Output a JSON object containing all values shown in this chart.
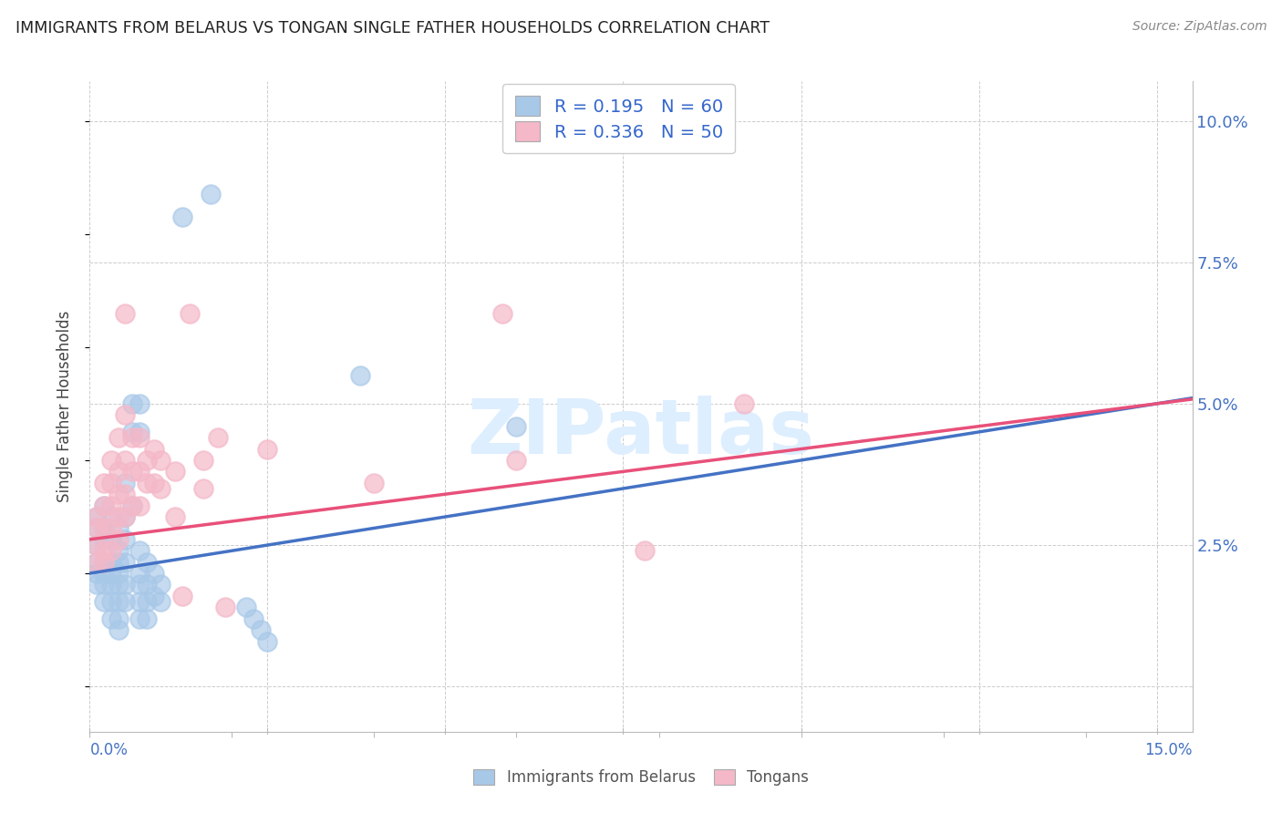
{
  "title": "IMMIGRANTS FROM BELARUS VS TONGAN SINGLE FATHER HOUSEHOLDS CORRELATION CHART",
  "source": "Source: ZipAtlas.com",
  "ylabel": "Single Father Households",
  "right_yticks": [
    0.0,
    0.025,
    0.05,
    0.075,
    0.1
  ],
  "right_yticklabels": [
    "",
    "2.5%",
    "5.0%",
    "7.5%",
    "10.0%"
  ],
  "belarus_color": "#a8c8e8",
  "tongan_color": "#f4b8c8",
  "belarus_line_color": "#4472c4",
  "tongan_line_color": "#e8507a",
  "background_color": "#ffffff",
  "grid_color": "#cccccc",
  "xlim": [
    0.0,
    0.155
  ],
  "ylim": [
    -0.008,
    0.107
  ],
  "watermark_color": "#ddeeff",
  "legend_blue_face": "#a8c8e8",
  "legend_pink_face": "#f4b8c8",
  "legend_text_color": "#3366cc",
  "legend_n_color": "#cc3366",
  "belarus_scatter": [
    [
      0.001,
      0.03
    ],
    [
      0.001,
      0.028
    ],
    [
      0.001,
      0.025
    ],
    [
      0.001,
      0.022
    ],
    [
      0.001,
      0.02
    ],
    [
      0.001,
      0.018
    ],
    [
      0.002,
      0.032
    ],
    [
      0.002,
      0.028
    ],
    [
      0.002,
      0.026
    ],
    [
      0.002,
      0.022
    ],
    [
      0.002,
      0.02
    ],
    [
      0.002,
      0.018
    ],
    [
      0.002,
      0.015
    ],
    [
      0.003,
      0.03
    ],
    [
      0.003,
      0.026
    ],
    [
      0.003,
      0.022
    ],
    [
      0.003,
      0.02
    ],
    [
      0.003,
      0.018
    ],
    [
      0.003,
      0.015
    ],
    [
      0.003,
      0.012
    ],
    [
      0.004,
      0.028
    ],
    [
      0.004,
      0.024
    ],
    [
      0.004,
      0.022
    ],
    [
      0.004,
      0.02
    ],
    [
      0.004,
      0.018
    ],
    [
      0.004,
      0.015
    ],
    [
      0.004,
      0.012
    ],
    [
      0.004,
      0.01
    ],
    [
      0.005,
      0.036
    ],
    [
      0.005,
      0.03
    ],
    [
      0.005,
      0.026
    ],
    [
      0.005,
      0.022
    ],
    [
      0.005,
      0.018
    ],
    [
      0.005,
      0.015
    ],
    [
      0.006,
      0.05
    ],
    [
      0.006,
      0.045
    ],
    [
      0.006,
      0.032
    ],
    [
      0.007,
      0.05
    ],
    [
      0.007,
      0.045
    ],
    [
      0.007,
      0.024
    ],
    [
      0.007,
      0.02
    ],
    [
      0.007,
      0.018
    ],
    [
      0.007,
      0.015
    ],
    [
      0.007,
      0.012
    ],
    [
      0.008,
      0.022
    ],
    [
      0.008,
      0.018
    ],
    [
      0.008,
      0.015
    ],
    [
      0.008,
      0.012
    ],
    [
      0.009,
      0.02
    ],
    [
      0.009,
      0.016
    ],
    [
      0.01,
      0.018
    ],
    [
      0.01,
      0.015
    ],
    [
      0.013,
      0.083
    ],
    [
      0.017,
      0.087
    ],
    [
      0.022,
      0.014
    ],
    [
      0.023,
      0.012
    ],
    [
      0.024,
      0.01
    ],
    [
      0.025,
      0.008
    ],
    [
      0.038,
      0.055
    ],
    [
      0.06,
      0.046
    ]
  ],
  "tongan_scatter": [
    [
      0.001,
      0.03
    ],
    [
      0.001,
      0.028
    ],
    [
      0.001,
      0.025
    ],
    [
      0.001,
      0.022
    ],
    [
      0.002,
      0.036
    ],
    [
      0.002,
      0.032
    ],
    [
      0.002,
      0.028
    ],
    [
      0.002,
      0.024
    ],
    [
      0.002,
      0.022
    ],
    [
      0.003,
      0.04
    ],
    [
      0.003,
      0.036
    ],
    [
      0.003,
      0.032
    ],
    [
      0.003,
      0.028
    ],
    [
      0.003,
      0.024
    ],
    [
      0.004,
      0.044
    ],
    [
      0.004,
      0.038
    ],
    [
      0.004,
      0.034
    ],
    [
      0.004,
      0.03
    ],
    [
      0.004,
      0.026
    ],
    [
      0.005,
      0.066
    ],
    [
      0.005,
      0.048
    ],
    [
      0.005,
      0.04
    ],
    [
      0.005,
      0.034
    ],
    [
      0.005,
      0.03
    ],
    [
      0.006,
      0.044
    ],
    [
      0.006,
      0.038
    ],
    [
      0.006,
      0.032
    ],
    [
      0.007,
      0.044
    ],
    [
      0.007,
      0.038
    ],
    [
      0.007,
      0.032
    ],
    [
      0.008,
      0.04
    ],
    [
      0.008,
      0.036
    ],
    [
      0.009,
      0.042
    ],
    [
      0.009,
      0.036
    ],
    [
      0.01,
      0.04
    ],
    [
      0.01,
      0.035
    ],
    [
      0.012,
      0.038
    ],
    [
      0.012,
      0.03
    ],
    [
      0.013,
      0.016
    ],
    [
      0.014,
      0.066
    ],
    [
      0.016,
      0.04
    ],
    [
      0.016,
      0.035
    ],
    [
      0.018,
      0.044
    ],
    [
      0.019,
      0.014
    ],
    [
      0.025,
      0.042
    ],
    [
      0.04,
      0.036
    ],
    [
      0.058,
      0.066
    ],
    [
      0.06,
      0.04
    ],
    [
      0.078,
      0.024
    ],
    [
      0.092,
      0.05
    ]
  ]
}
